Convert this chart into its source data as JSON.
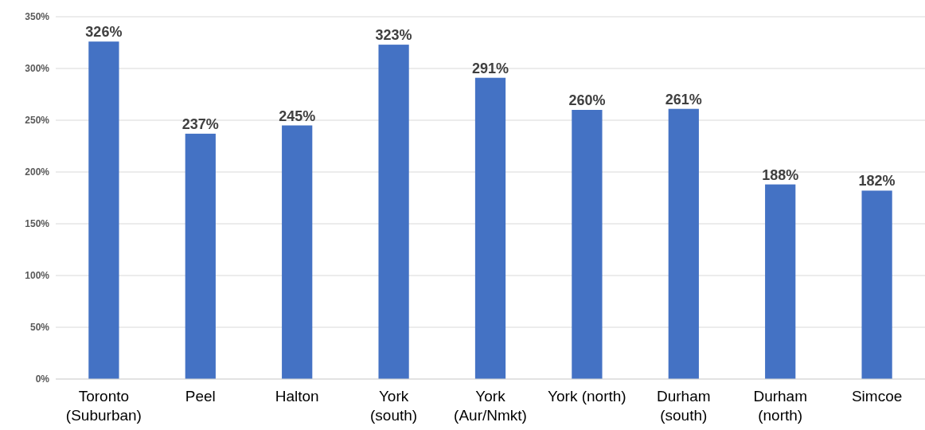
{
  "chart_data": {
    "type": "bar",
    "categories": [
      "Toronto\n(Suburban)",
      "Peel",
      "Halton",
      "York\n(south)",
      "York\n(Aur/Nmkt)",
      "York (north)",
      "Durham\n(south)",
      "Durham\n(north)",
      "Simcoe"
    ],
    "values": [
      326,
      237,
      245,
      323,
      291,
      260,
      261,
      188,
      182
    ],
    "value_labels": [
      "326%",
      "237%",
      "245%",
      "323%",
      "291%",
      "260%",
      "261%",
      "188%",
      "182%"
    ],
    "color": "#4472c4",
    "ylim": [
      0,
      350
    ],
    "yticks": [
      {
        "value": 0,
        "label": "0%"
      },
      {
        "value": 50,
        "label": "50%"
      },
      {
        "value": 100,
        "label": "100%"
      },
      {
        "value": 150,
        "label": "150%"
      },
      {
        "value": 200,
        "label": "200%"
      },
      {
        "value": 250,
        "label": "250%"
      },
      {
        "value": 300,
        "label": "300%"
      },
      {
        "value": 350,
        "label": "350%"
      }
    ],
    "grid": "y"
  }
}
